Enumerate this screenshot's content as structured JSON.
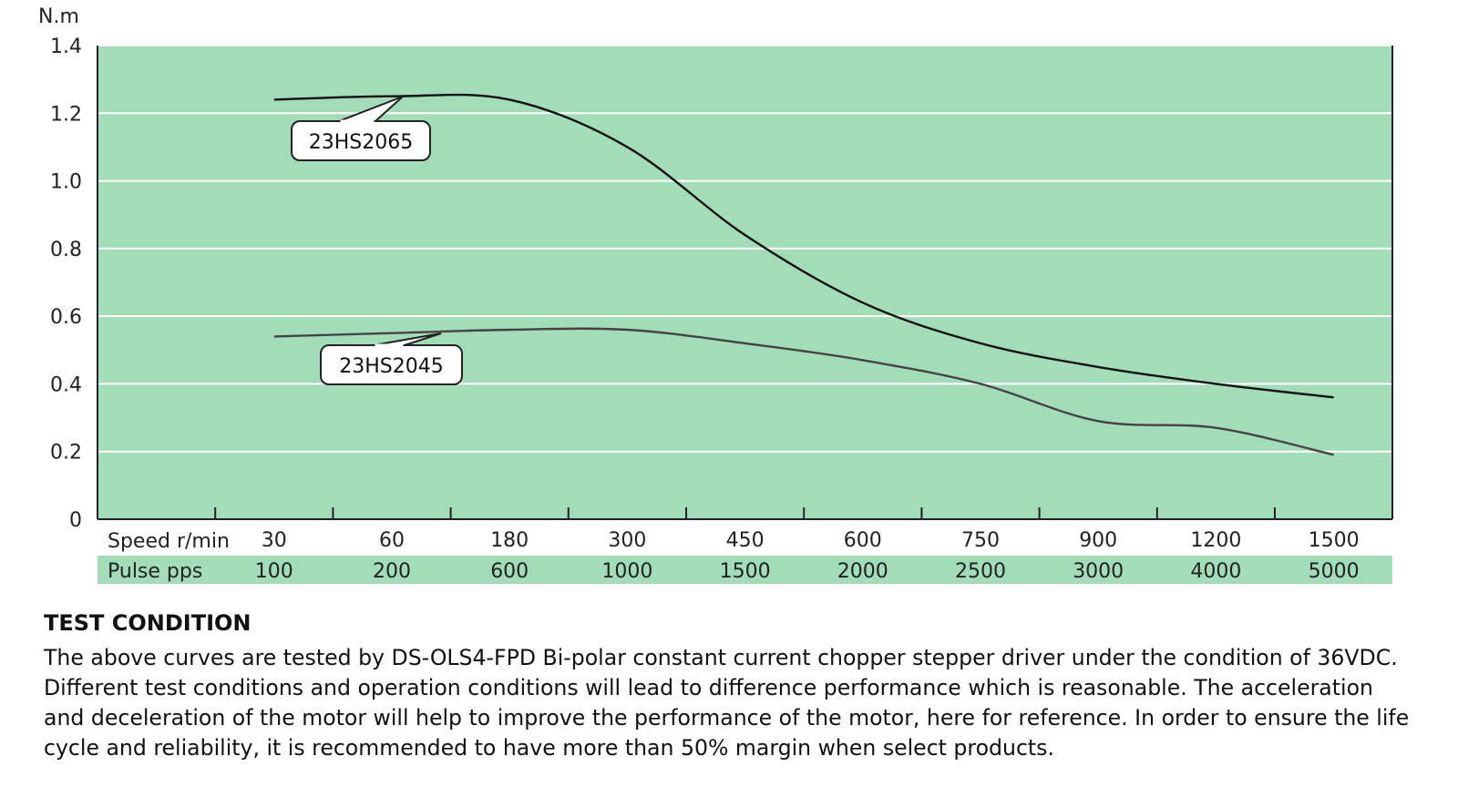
{
  "chart_data": {
    "type": "line",
    "y_unit": "N.m",
    "ylim": [
      0,
      1.4
    ],
    "y_ticks": [
      "0",
      "0.2",
      "0.4",
      "0.6",
      "0.8",
      "1.0",
      "1.2",
      "1.4"
    ],
    "grid": true,
    "x_row1_label": "Speed r/min",
    "x_row2_label": "Pulse  pps",
    "categories_speed": [
      "30",
      "60",
      "180",
      "300",
      "450",
      "600",
      "750",
      "900",
      "1200",
      "1500"
    ],
    "categories_pulse": [
      "100",
      "200",
      "600",
      "1000",
      "1500",
      "2000",
      "2500",
      "3000",
      "4000",
      "5000"
    ],
    "series": [
      {
        "name": "23HS2065",
        "color": "#111111",
        "x": [
          30,
          60,
          180,
          300,
          450,
          600,
          750,
          900,
          1200,
          1500
        ],
        "values": [
          1.24,
          1.25,
          1.24,
          1.1,
          0.84,
          0.64,
          0.52,
          0.45,
          0.4,
          0.36
        ]
      },
      {
        "name": "23HS2045",
        "color": "#444444",
        "x": [
          30,
          60,
          180,
          300,
          450,
          600,
          750,
          900,
          1200,
          1500
        ],
        "values": [
          0.54,
          0.55,
          0.56,
          0.56,
          0.52,
          0.47,
          0.4,
          0.29,
          0.27,
          0.19
        ]
      }
    ]
  },
  "colors": {
    "plot_bg": "#a2dcb8",
    "grid": "#ffffff",
    "axis": "#222222"
  },
  "test": {
    "title": "TEST CONDITION",
    "lines": [
      "The above curves are tested by DS-OLS4-FPD Bi-polar constant current chopper stepper driver under the condition of 36VDC.",
      "Different test conditions and operation conditions will lead to difference performance which is reasonable. The acceleration",
      "and deceleration of the motor will help to improve the performance of the motor, here for reference. In order to ensure the life",
      "cycle and reliability, it is recommended to have more than 50% margin when select products."
    ]
  }
}
